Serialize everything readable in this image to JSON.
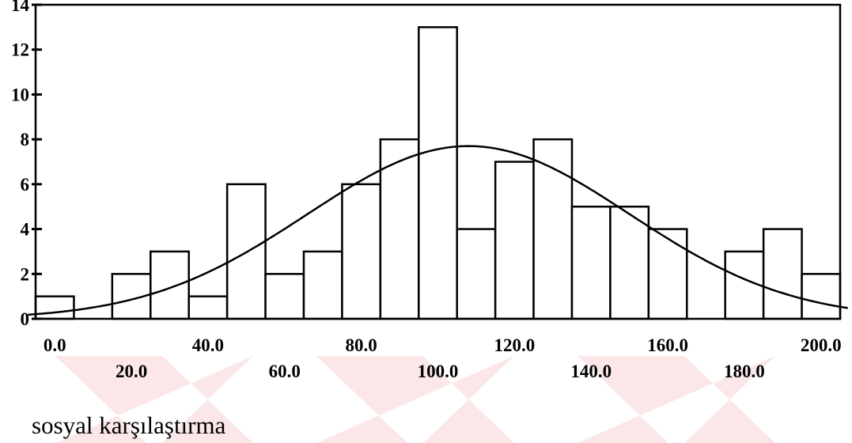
{
  "chart_data": {
    "type": "bar",
    "title": "",
    "xlabel": "sosyal karşılaştırma",
    "ylabel": "",
    "bin_width": 10,
    "bins": [
      {
        "x0": 0,
        "x1": 10,
        "value": 1
      },
      {
        "x0": 10,
        "x1": 20,
        "value": 0
      },
      {
        "x0": 20,
        "x1": 30,
        "value": 2
      },
      {
        "x0": 30,
        "x1": 40,
        "value": 3
      },
      {
        "x0": 40,
        "x1": 50,
        "value": 1
      },
      {
        "x0": 50,
        "x1": 60,
        "value": 6
      },
      {
        "x0": 60,
        "x1": 70,
        "value": 2
      },
      {
        "x0": 70,
        "x1": 80,
        "value": 3
      },
      {
        "x0": 80,
        "x1": 90,
        "value": 6
      },
      {
        "x0": 90,
        "x1": 100,
        "value": 8
      },
      {
        "x0": 100,
        "x1": 110,
        "value": 13
      },
      {
        "x0": 110,
        "x1": 120,
        "value": 4
      },
      {
        "x0": 120,
        "x1": 130,
        "value": 7
      },
      {
        "x0": 130,
        "x1": 140,
        "value": 8
      },
      {
        "x0": 140,
        "x1": 150,
        "value": 5
      },
      {
        "x0": 150,
        "x1": 160,
        "value": 5
      },
      {
        "x0": 160,
        "x1": 170,
        "value": 4
      },
      {
        "x0": 170,
        "x1": 180,
        "value": 0
      },
      {
        "x0": 180,
        "x1": 190,
        "value": 3
      },
      {
        "x0": 190,
        "x1": 200,
        "value": 4
      },
      {
        "x0": 200,
        "x1": 210,
        "value": 2
      }
    ],
    "normal_curve": {
      "mean": 113,
      "sd": 42,
      "peak": 7.7
    },
    "xlim": [
      0,
      210
    ],
    "ylim": [
      0,
      14
    ],
    "y_ticks": [
      "0",
      "2",
      "4",
      "6",
      "8",
      "10",
      "12",
      "14"
    ],
    "x_ticks_upper": [
      "0.0",
      "40.0",
      "80.0",
      "120.0",
      "160.0",
      "200.0"
    ],
    "x_ticks_lower": [
      "20.0",
      "60.0",
      "100.0",
      "140.0",
      "180.0"
    ],
    "x_ticks_upper_values": [
      5,
      45,
      85,
      125,
      165,
      205
    ],
    "x_ticks_lower_values": [
      25,
      65,
      105,
      145,
      185
    ],
    "grid": false,
    "colors": {
      "bar_fill": "#ffffff",
      "stroke": "#000000"
    }
  }
}
